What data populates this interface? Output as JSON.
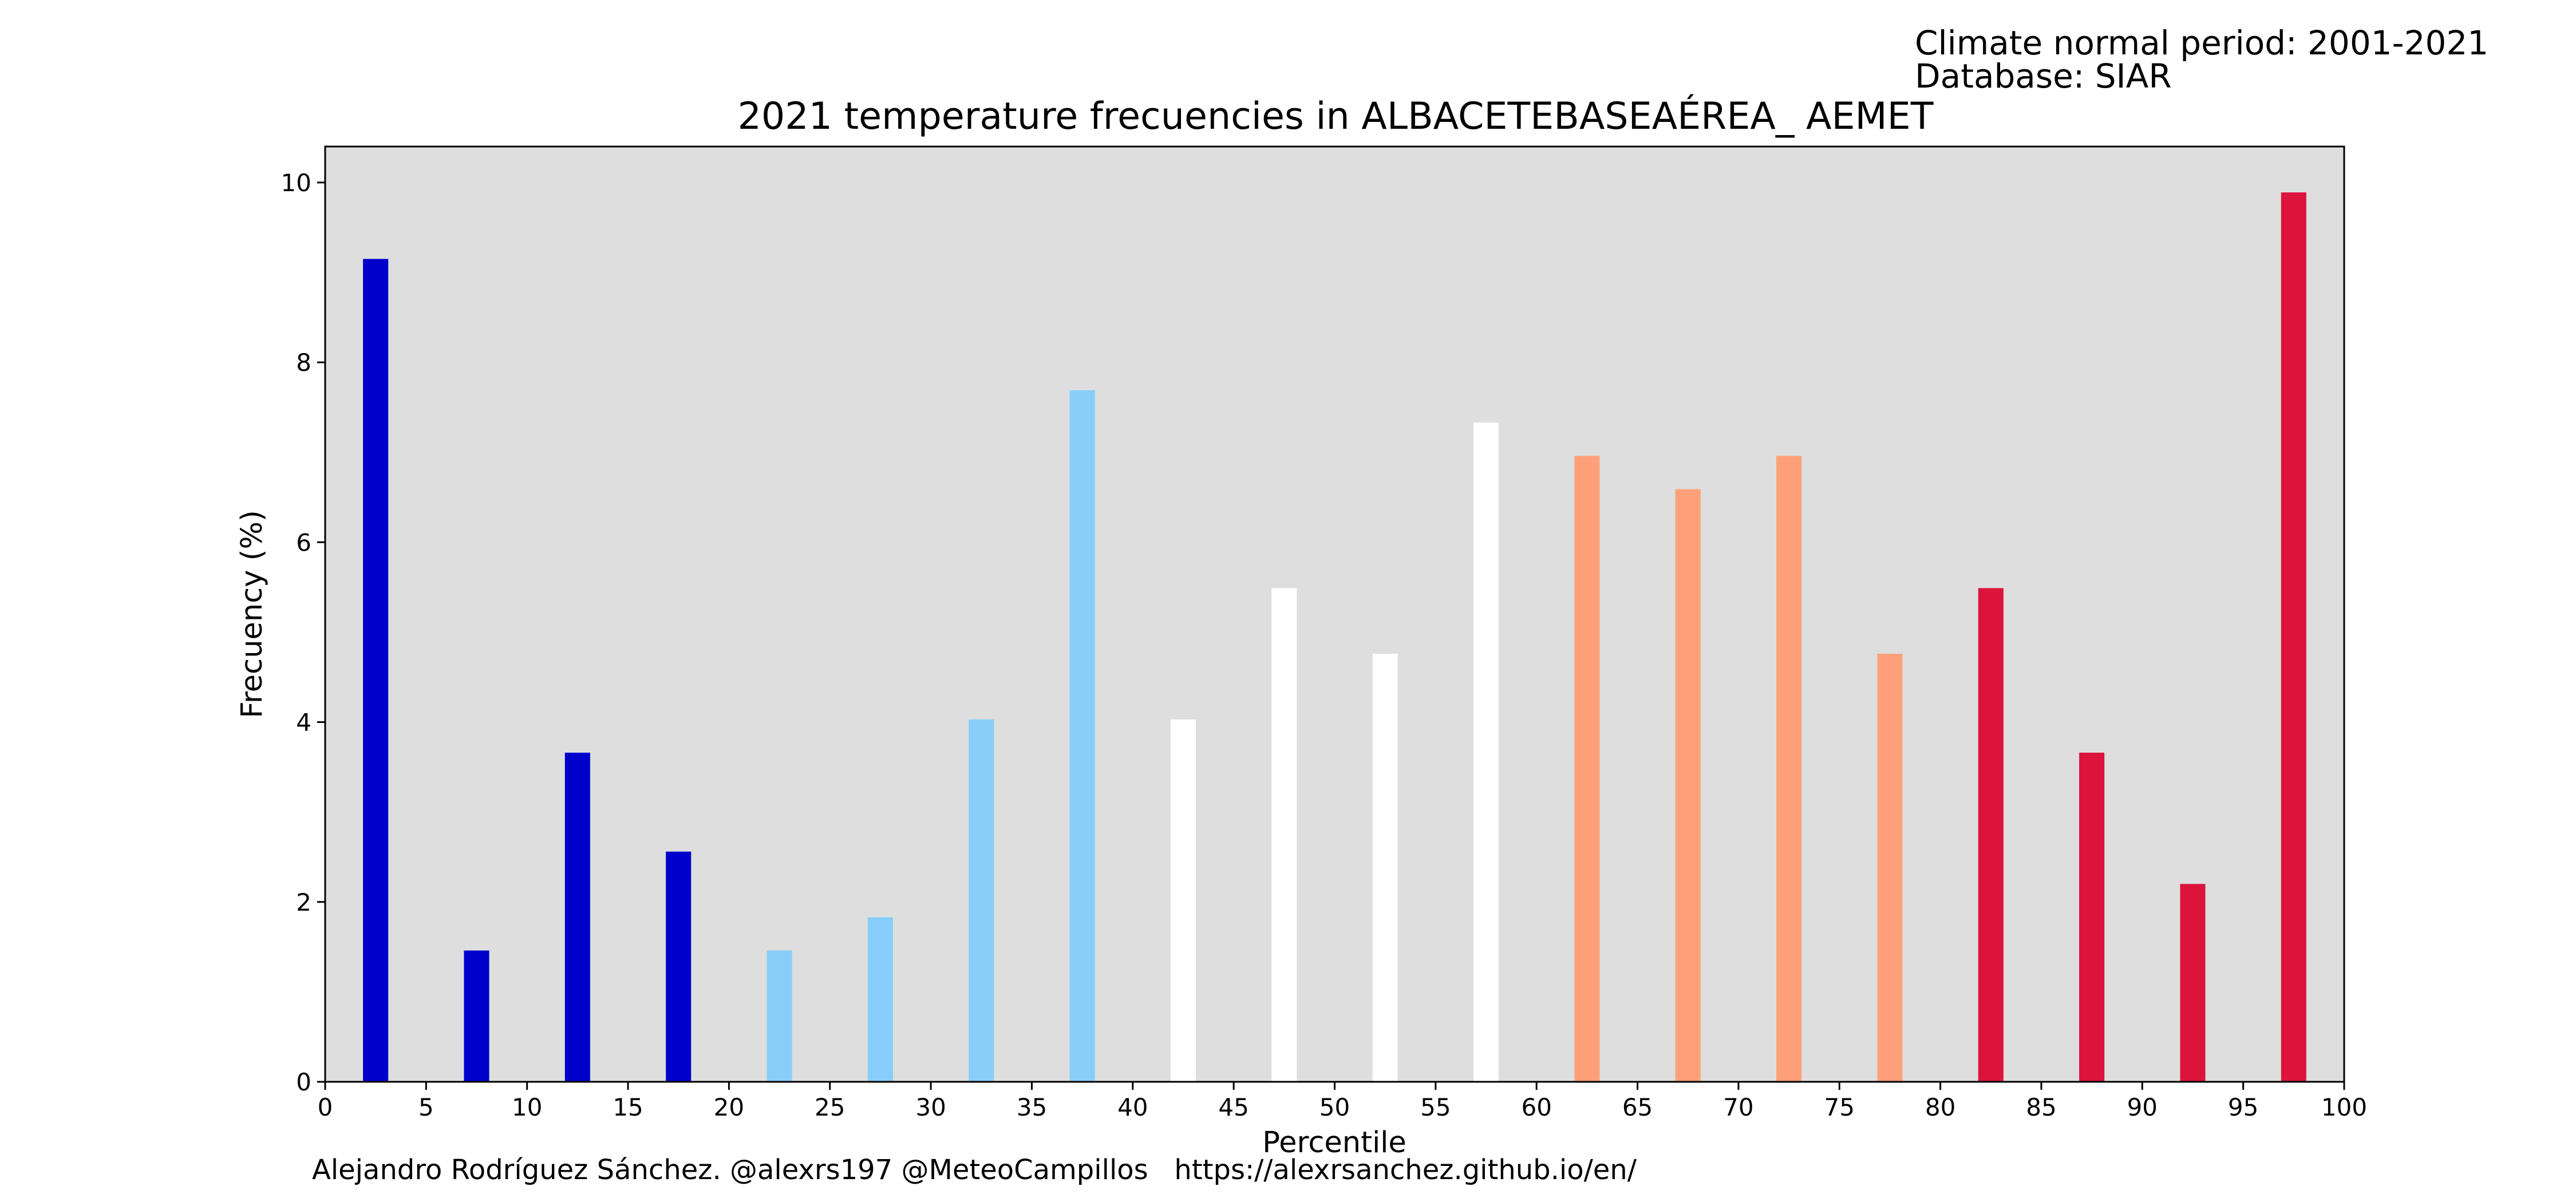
{
  "chart_data": {
    "type": "bar",
    "title": "2021 temperature frecuencies in ALBACETEBASEAÉREA_ AEMET",
    "info_lines": [
      "Climate normal period: 2001-2021",
      "Database: SIAR"
    ],
    "xlabel": "Percentile",
    "ylabel": "Frecuency (%)",
    "footer": "Alejandro Rodríguez Sánchez. @alexrs197 @MeteoCampillos   https://alexrsanchez.github.io/en/",
    "xlim": [
      0,
      100
    ],
    "ylim": [
      0,
      10.4
    ],
    "xticks": [
      0,
      5,
      10,
      15,
      20,
      25,
      30,
      35,
      40,
      45,
      50,
      55,
      60,
      65,
      70,
      75,
      80,
      85,
      90,
      95,
      100
    ],
    "yticks": [
      0,
      2,
      4,
      6,
      8,
      10
    ],
    "grid": false,
    "plot_background": "#dedede",
    "bar_width": 1.25,
    "categories": [
      2.5,
      7.5,
      12.5,
      17.5,
      22.5,
      27.5,
      32.5,
      37.5,
      42.5,
      47.5,
      52.5,
      57.5,
      62.5,
      67.5,
      72.5,
      77.5,
      82.5,
      87.5,
      92.5,
      97.5
    ],
    "values": [
      9.15,
      1.46,
      3.66,
      2.56,
      1.46,
      1.83,
      4.03,
      7.69,
      4.03,
      5.49,
      4.76,
      7.33,
      6.96,
      6.59,
      6.96,
      4.76,
      5.49,
      3.66,
      2.2,
      9.89
    ],
    "colors": [
      "#0000cd",
      "#0000cd",
      "#0000cd",
      "#0000cd",
      "#87cefa",
      "#87cefa",
      "#87cefa",
      "#87cefa",
      "#ffffff",
      "#ffffff",
      "#ffffff",
      "#ffffff",
      "#ffa07a",
      "#ffa07a",
      "#ffa07a",
      "#ffa07a",
      "#dc143c",
      "#dc143c",
      "#dc143c",
      "#dc143c"
    ]
  }
}
